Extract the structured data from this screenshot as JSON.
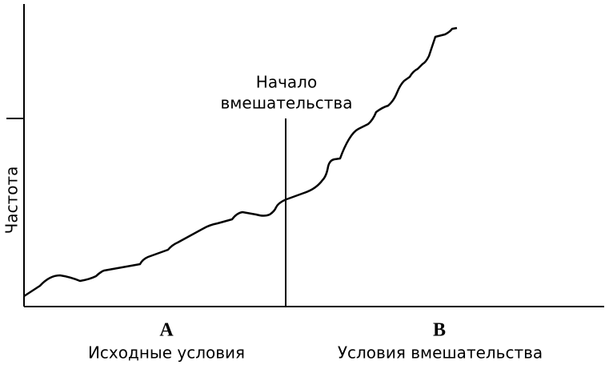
{
  "y_axis_label": "Частота",
  "annotation": {
    "line1": "Начало",
    "line2": "вмешательства"
  },
  "phases": [
    {
      "letter": "A",
      "label": "Исходные условия"
    },
    {
      "letter": "B",
      "label": "Условия вмешательства"
    }
  ]
}
